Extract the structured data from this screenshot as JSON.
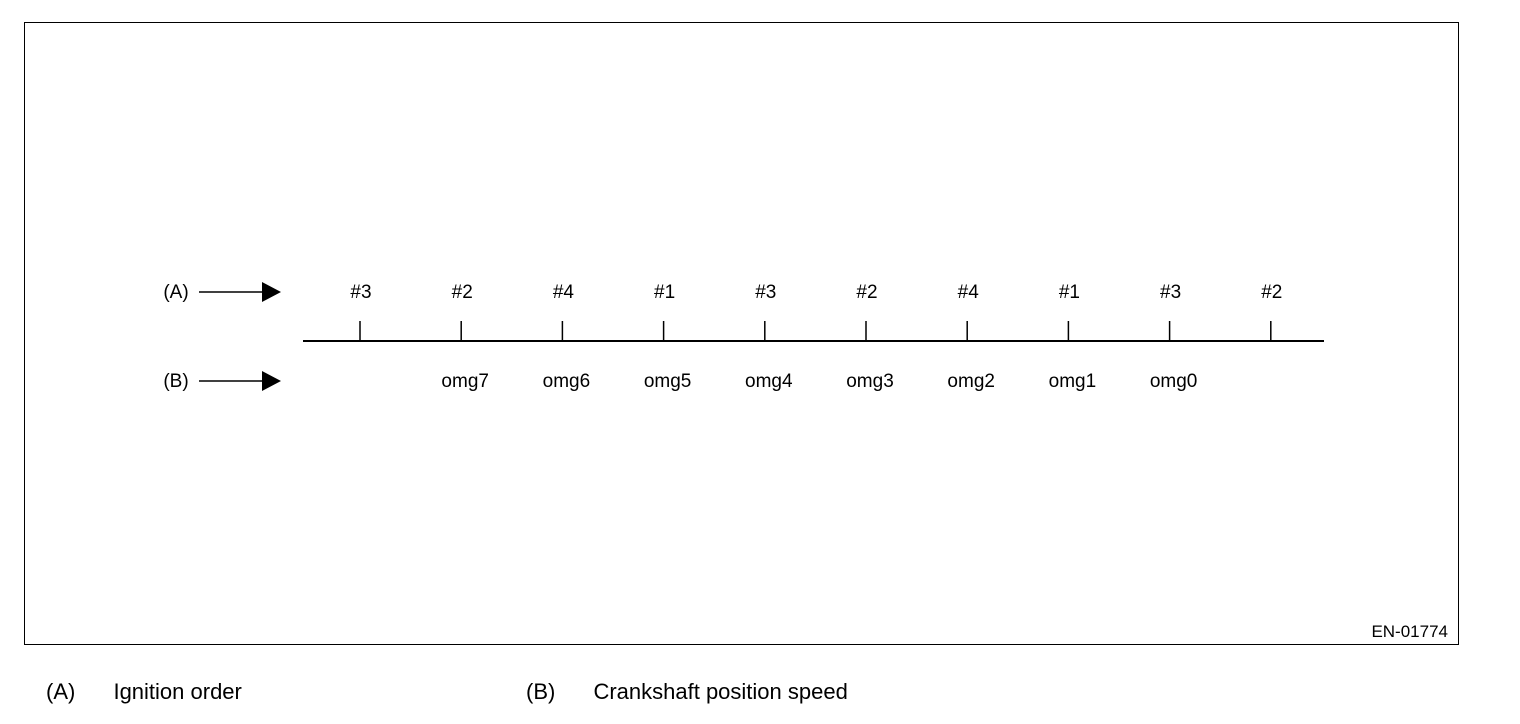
{
  "diagram": {
    "row_a_marker": "(A)",
    "row_b_marker": "(B)",
    "ignition_order": [
      "#3",
      "#2",
      "#4",
      "#1",
      "#3",
      "#2",
      "#4",
      "#1",
      "#3",
      "#2"
    ],
    "crankshaft_speeds": [
      "",
      "omg7",
      "omg6",
      "omg5",
      "omg4",
      "omg3",
      "omg2",
      "omg1",
      "omg0",
      ""
    ],
    "reference_code": "EN-01774"
  },
  "legend": [
    {
      "key": "(A)",
      "description": "Ignition order"
    },
    {
      "key": "(B)",
      "description": "Crankshaft position speed"
    }
  ]
}
